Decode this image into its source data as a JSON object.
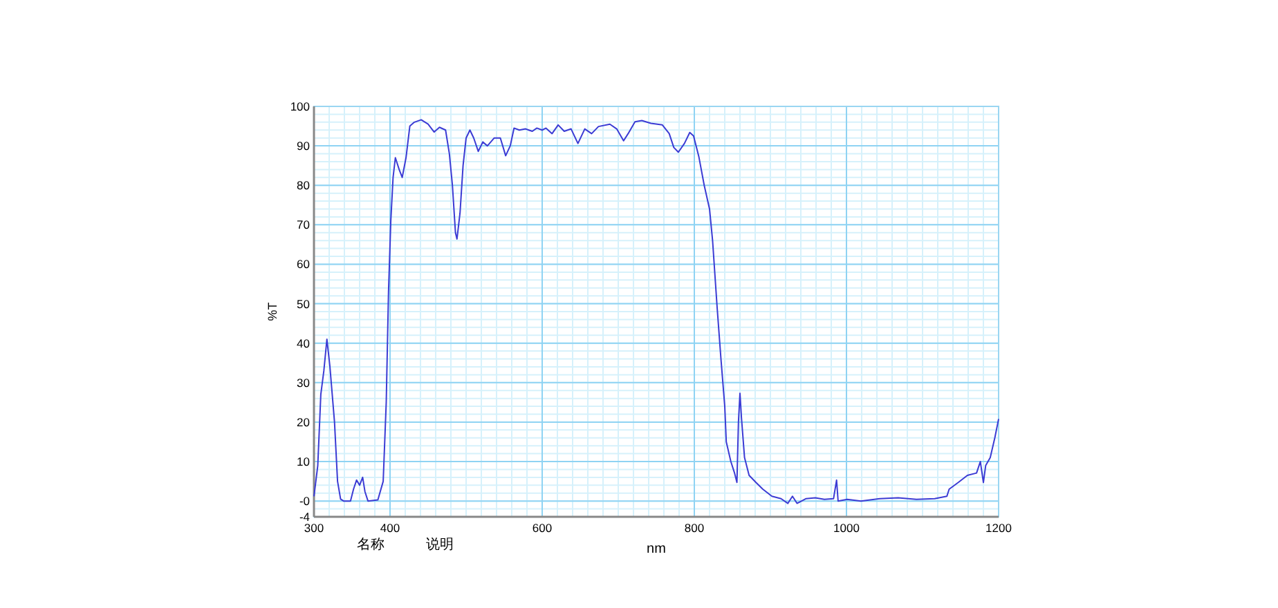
{
  "chart_data": {
    "type": "line",
    "xlabel": "nm",
    "ylabel": "%T",
    "annotations": [
      "名称",
      "说明"
    ],
    "xlim": [
      300,
      1200
    ],
    "xticks": [
      300,
      400,
      600,
      800,
      1000,
      1200
    ],
    "ylim": [
      -4,
      100
    ],
    "yticks": [
      {
        "value": -4,
        "label": "-4"
      },
      {
        "value": 0,
        "label": "-0"
      },
      10,
      20,
      30,
      40,
      50,
      60,
      70,
      80,
      90,
      100
    ],
    "grid": true,
    "marker": "none",
    "line_style": "solid",
    "series": [
      {
        "color": "#3b3bd4",
        "x": [
          300,
          305,
          309,
          313,
          317,
          321,
          327,
          331,
          335,
          339,
          348,
          352,
          356,
          360,
          364,
          367,
          371,
          384,
          391,
          395,
          398,
          401,
          404,
          407,
          412,
          416,
          421,
          426,
          432,
          441,
          450,
          458,
          465,
          473,
          478,
          482,
          486,
          488,
          492,
          496,
          500,
          505,
          510,
          516,
          522,
          528,
          537,
          545,
          552,
          558,
          563,
          570,
          578,
          587,
          593,
          600,
          605,
          613,
          621,
          629,
          638,
          647,
          656,
          665,
          674,
          689,
          698,
          707,
          713,
          722,
          731,
          743,
          758,
          767,
          773,
          779,
          787,
          794,
          799,
          806,
          813,
          820,
          824,
          830,
          835,
          840,
          842,
          848,
          853,
          856,
          858,
          860,
          862,
          866,
          872,
          881,
          890,
          902,
          914,
          923,
          929,
          935,
          947,
          959,
          971,
          983,
          987,
          989,
          1001,
          1019,
          1044,
          1068,
          1092,
          1116,
          1132,
          1135,
          1147,
          1159,
          1171,
          1176,
          1180,
          1183,
          1189,
          1195,
          1200
        ],
        "values": [
          1.2,
          9,
          27,
          33,
          41,
          34,
          20,
          5,
          0.5,
          0,
          0,
          3,
          5.3,
          4,
          6,
          2.4,
          0,
          0.3,
          5,
          25,
          53,
          71,
          82,
          87,
          84,
          82,
          87,
          95,
          96,
          96.6,
          95.5,
          93.5,
          94.7,
          94,
          88,
          80,
          68,
          66.4,
          73,
          85,
          92,
          94,
          92,
          88.6,
          91,
          90,
          92,
          92,
          87.5,
          90,
          94.5,
          94,
          94.3,
          93.7,
          94.5,
          94,
          94.5,
          93.1,
          95.3,
          93.7,
          94.3,
          90.6,
          94.3,
          93.1,
          94.9,
          95.5,
          94.3,
          91.3,
          93.1,
          96.1,
          96.4,
          95.7,
          95.3,
          93.1,
          89.6,
          88.4,
          90.6,
          93.4,
          92.5,
          87.2,
          80,
          74,
          66,
          49,
          36,
          24,
          15,
          10,
          7,
          4.7,
          20,
          27.3,
          21,
          11,
          6.5,
          4.7,
          3,
          1.2,
          0.6,
          -0.6,
          1.2,
          -0.6,
          0.6,
          0.8,
          0.4,
          0.6,
          5.3,
          0,
          0.4,
          0,
          0.6,
          0.8,
          0.4,
          0.6,
          1.2,
          3,
          4.7,
          6.5,
          7.1,
          10,
          4.7,
          9,
          11,
          16,
          20.8
        ]
      }
    ]
  }
}
